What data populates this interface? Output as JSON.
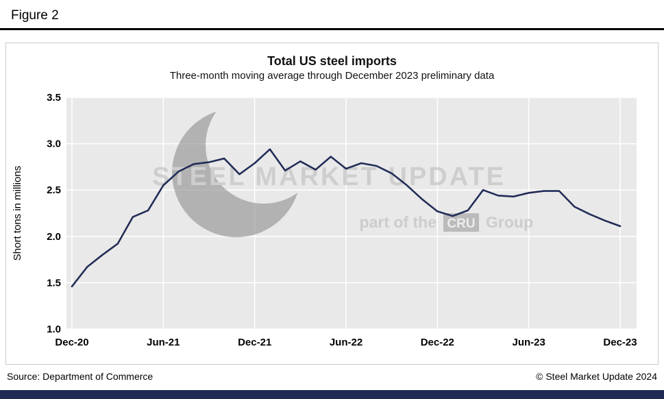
{
  "figure": {
    "label": "Figure 2"
  },
  "chart": {
    "title": "Total US steel imports",
    "subtitle": "Three-month moving average through December 2023 preliminary data"
  },
  "chart_data": {
    "type": "line",
    "title": "Total US steel imports",
    "subtitle": "Three-month moving average through December 2023 preliminary data",
    "xlabel": "",
    "ylabel": "Short tons in millions",
    "ylim": [
      1.0,
      3.5
    ],
    "yticks": [
      1.0,
      1.5,
      2.0,
      2.5,
      3.0,
      3.5
    ],
    "ytick_labels": [
      "1.0",
      "1.5",
      "2.0",
      "2.5",
      "3.0",
      "3.5"
    ],
    "x": [
      "Dec-20",
      "Jan-21",
      "Feb-21",
      "Mar-21",
      "Apr-21",
      "May-21",
      "Jun-21",
      "Jul-21",
      "Aug-21",
      "Sep-21",
      "Oct-21",
      "Nov-21",
      "Dec-21",
      "Jan-22",
      "Feb-22",
      "Mar-22",
      "Apr-22",
      "May-22",
      "Jun-22",
      "Jul-22",
      "Aug-22",
      "Sep-22",
      "Oct-22",
      "Nov-22",
      "Dec-22",
      "Jan-23",
      "Feb-23",
      "Mar-23",
      "Apr-23",
      "May-23",
      "Jun-23",
      "Jul-23",
      "Aug-23",
      "Sep-23",
      "Oct-23",
      "Nov-23",
      "Dec-23"
    ],
    "xtick_labels": [
      "Dec-20",
      "Jun-21",
      "Dec-21",
      "Jun-22",
      "Dec-22",
      "Jun-23",
      "Dec-23"
    ],
    "xtick_indices": [
      0,
      6,
      12,
      18,
      24,
      30,
      36
    ],
    "series": [
      {
        "name": "Total US steel imports, three-month moving average",
        "values": [
          1.46,
          1.67,
          1.8,
          1.92,
          2.21,
          2.28,
          2.55,
          2.7,
          2.78,
          2.8,
          2.84,
          2.67,
          2.79,
          2.94,
          2.71,
          2.81,
          2.72,
          2.86,
          2.73,
          2.79,
          2.76,
          2.68,
          2.55,
          2.4,
          2.27,
          2.22,
          2.28,
          2.5,
          2.44,
          2.43,
          2.47,
          2.49,
          2.49,
          2.32,
          2.24,
          2.17,
          2.11
        ]
      }
    ],
    "grid": true,
    "legend": false,
    "line_color": "#222d57",
    "plot_bg": "#e9e9e9"
  },
  "watermark": {
    "line1": "STEEL MARKET UPDATE",
    "line2_prefix": "part of the",
    "line2_box": "CRU",
    "line2_suffix": "Group"
  },
  "footer": {
    "source": "Source: Department of Commerce",
    "copyright": "© Steel Market Update 2024"
  },
  "colors": {
    "accent_bar": "#1f2b55",
    "watermark_gray": "#a8a8a8"
  }
}
